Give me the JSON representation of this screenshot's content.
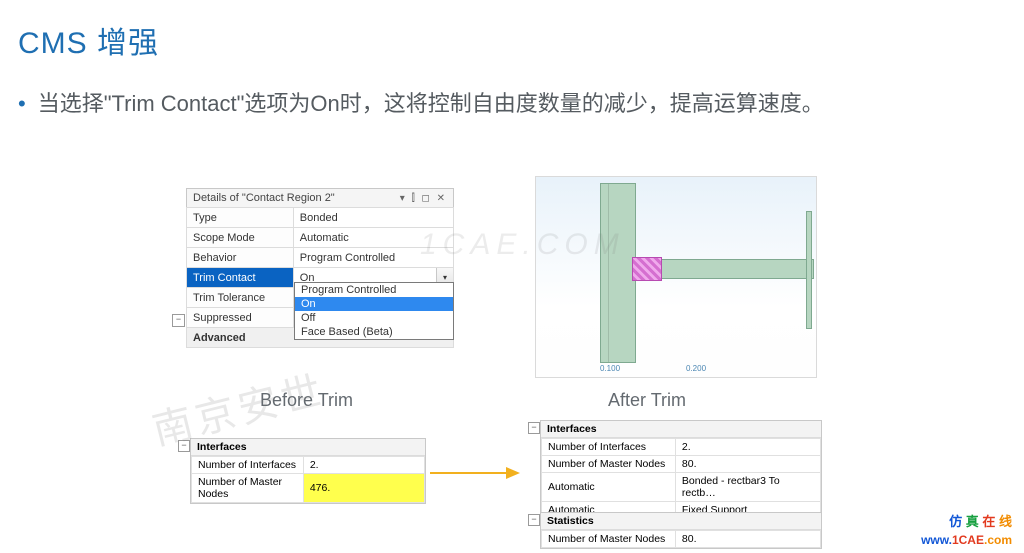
{
  "slide": {
    "title": "CMS 增强",
    "bullet": "当选择\"Trim Contact\"选项为On时，这将控制自由度数量的减少，提高运算速度。"
  },
  "details": {
    "panel_title": "Details of \"Contact Region 2\"",
    "rows": [
      {
        "label": "Type",
        "value": "Bonded",
        "kind": "normal"
      },
      {
        "label": "Scope Mode",
        "value": "Automatic",
        "kind": "normal"
      },
      {
        "label": "Behavior",
        "value": "Program Controlled",
        "kind": "normal"
      },
      {
        "label": "Trim Contact",
        "value": "On",
        "kind": "selected"
      },
      {
        "label": "Trim Tolerance",
        "value": "",
        "kind": "normal"
      },
      {
        "label": "Suppressed",
        "value": "",
        "kind": "normal"
      },
      {
        "label": "Advanced",
        "value": "",
        "kind": "section"
      }
    ],
    "dropdown": [
      "Program Controlled",
      "On",
      "Off",
      "Face Based (Beta)"
    ],
    "dropdown_selected_index": 1
  },
  "labels": {
    "before": "Before Trim",
    "after": "After Trim"
  },
  "before_interfaces": {
    "header": "Interfaces",
    "rows": [
      {
        "k": "Number of Interfaces",
        "v": "2."
      },
      {
        "k": "Number of Master Nodes",
        "v": "476.",
        "hl": true
      }
    ]
  },
  "after_interfaces": {
    "header": "Interfaces",
    "rows": [
      {
        "k": "Number of Interfaces",
        "v": "2."
      },
      {
        "k": "Number of Master Nodes",
        "v": "80."
      },
      {
        "k": "Automatic",
        "v": "Bonded - rectbar3 To rectb…"
      },
      {
        "k": "Automatic",
        "v": "Fixed Support"
      }
    ]
  },
  "after_stats": {
    "header": "Statistics",
    "rows": [
      {
        "k": "Number of Master Nodes",
        "v": "80."
      }
    ]
  },
  "viewport": {
    "scale_left": "0.100",
    "scale_right": "0.200"
  },
  "watermarks": {
    "left": "南京安世",
    "center": "1CAE.COM"
  },
  "footer": {
    "line1": [
      "仿",
      "真",
      "在",
      "线"
    ],
    "line2_www": "www.",
    "line2_name": "1CAE",
    "line2_com": ".com"
  },
  "colors": {
    "title": "#1f6fb2",
    "selected_row": "#0a63c2",
    "highlight": "#ffff4d",
    "arrow": "#f2b01e"
  }
}
